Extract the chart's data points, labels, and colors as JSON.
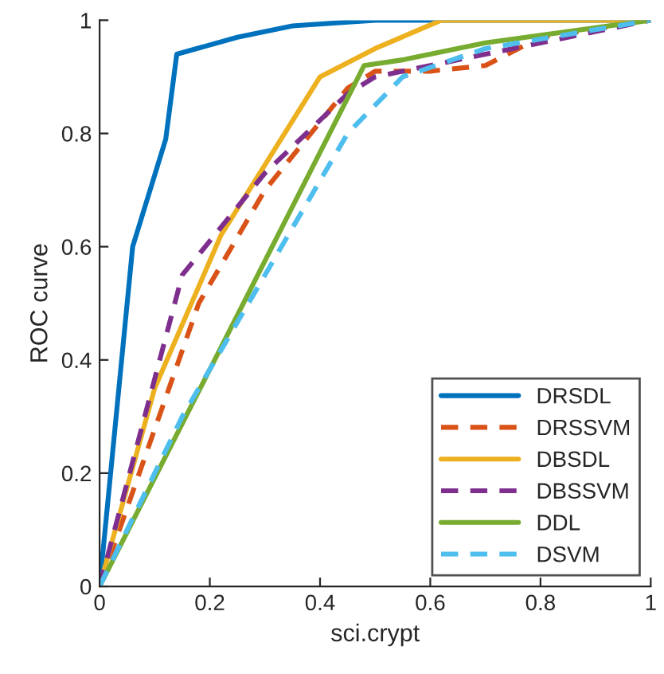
{
  "chart_data": {
    "type": "line",
    "xlabel": "sci.crypt",
    "ylabel": "ROC curve",
    "xlim": [
      0,
      1
    ],
    "ylim": [
      0,
      1
    ],
    "xticks": [
      0,
      0.2,
      0.4,
      0.6,
      0.8,
      1
    ],
    "yticks": [
      0,
      0.2,
      0.4,
      0.6,
      0.8,
      1
    ],
    "grid": false,
    "legend": "bottom right",
    "series": [
      {
        "name": "DRSDL",
        "color": "#0072bd",
        "line_style": "solid",
        "x": [
          0,
          0.06,
          0.12,
          0.14,
          0.25,
          0.35,
          0.5,
          1
        ],
        "values": [
          0,
          0.6,
          0.79,
          0.94,
          0.97,
          0.99,
          1,
          1
        ]
      },
      {
        "name": "DRSSVM",
        "color": "#d95319",
        "line_style": "dashed",
        "x": [
          0,
          0.18,
          0.3,
          0.45,
          0.5,
          0.6,
          0.7,
          0.8,
          1
        ],
        "values": [
          0,
          0.5,
          0.7,
          0.88,
          0.91,
          0.91,
          0.92,
          0.97,
          1
        ]
      },
      {
        "name": "DBSDL",
        "color": "#edb120",
        "line_style": "solid",
        "x": [
          0,
          0.1,
          0.22,
          0.4,
          0.5,
          0.62,
          1
        ],
        "values": [
          0,
          0.35,
          0.62,
          0.9,
          0.95,
          1,
          1
        ]
      },
      {
        "name": "DBSSVM",
        "color": "#7e2f8e",
        "line_style": "dashed",
        "x": [
          0,
          0.15,
          0.3,
          0.45,
          0.5,
          0.6,
          0.75,
          1
        ],
        "values": [
          0,
          0.55,
          0.73,
          0.87,
          0.9,
          0.92,
          0.95,
          1
        ]
      },
      {
        "name": "DDL",
        "color": "#77ac30",
        "line_style": "solid",
        "x": [
          0,
          0.48,
          0.55,
          0.7,
          1
        ],
        "values": [
          0,
          0.92,
          0.93,
          0.96,
          1
        ]
      },
      {
        "name": "DSVM",
        "color": "#4dbeee",
        "line_style": "dashed",
        "x": [
          0,
          0.15,
          0.3,
          0.45,
          0.55,
          0.7,
          1
        ],
        "values": [
          0,
          0.3,
          0.55,
          0.8,
          0.9,
          0.95,
          1
        ]
      }
    ]
  }
}
